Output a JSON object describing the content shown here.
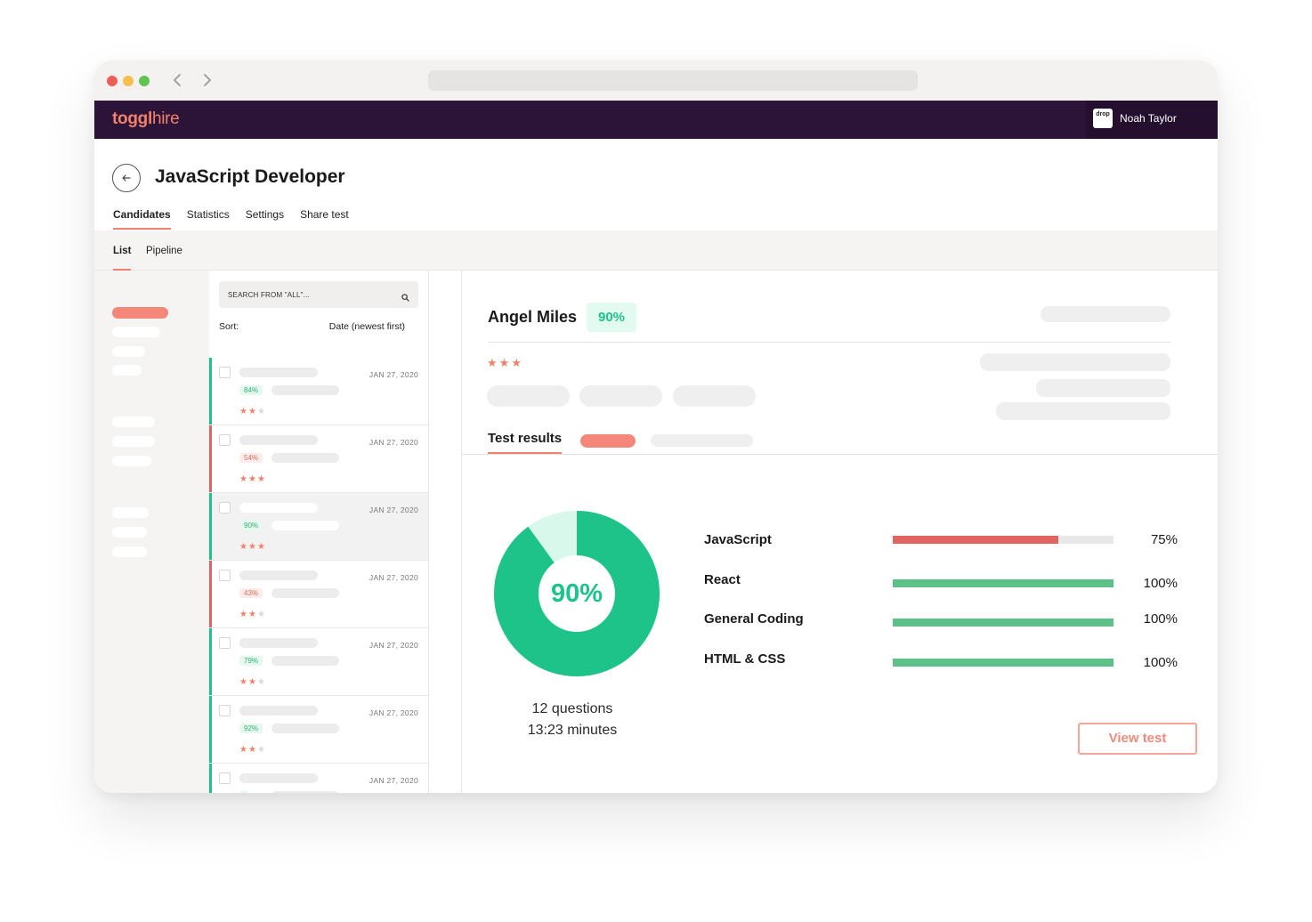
{
  "header": {
    "logo_primary": "toggl",
    "logo_secondary": "hire",
    "user_badge": "drop",
    "user_name": "Noah Taylor"
  },
  "page": {
    "title": "JavaScript Developer",
    "tabs": [
      "Candidates",
      "Statistics",
      "Settings",
      "Share test"
    ],
    "subtabs": [
      "List",
      "Pipeline"
    ]
  },
  "list": {
    "search_placeholder": "SEARCH FROM \"ALL\"...",
    "sort_label": "Sort:",
    "sort_value": "Date (newest first)",
    "candidates": [
      {
        "score": "84%",
        "date": "JAN 27, 2020",
        "stars": 2,
        "status": "green"
      },
      {
        "score": "54%",
        "date": "JAN 27, 2020",
        "stars": 3,
        "status": "red"
      },
      {
        "score": "90%",
        "date": "JAN 27, 2020",
        "stars": 3,
        "status": "green"
      },
      {
        "score": "43%",
        "date": "JAN 27, 2020",
        "stars": 2,
        "status": "red"
      },
      {
        "score": "79%",
        "date": "JAN 27, 2020",
        "stars": 2,
        "status": "green"
      },
      {
        "score": "92%",
        "date": "JAN 27, 2020",
        "stars": 2,
        "status": "green"
      },
      {
        "score": "",
        "date": "JAN 27, 2020",
        "stars": 0,
        "status": "green"
      }
    ]
  },
  "detail": {
    "name": "Angel Miles",
    "score": "90%",
    "stars": 3,
    "tab_label": "Test results",
    "donut_value": 0.9,
    "donut_label": "90%",
    "questions": "12 questions",
    "duration": "13:23 minutes",
    "skills": [
      {
        "name": "JavaScript",
        "pct_label": "75%",
        "value": 0.75,
        "color": "#e06461"
      },
      {
        "name": "React",
        "pct_label": "100%",
        "value": 1.0,
        "color": "#5cc088"
      },
      {
        "name": "General Coding",
        "pct_label": "100%",
        "value": 1.0,
        "color": "#5cc088"
      },
      {
        "name": "HTML & CSS",
        "pct_label": "100%",
        "value": 1.0,
        "color": "#5cc088"
      }
    ],
    "view_button": "View test"
  },
  "colors": {
    "accent": "#f0816a",
    "green": "#1ec38a",
    "red": "#e06461",
    "header_bg": "#2c1338"
  }
}
